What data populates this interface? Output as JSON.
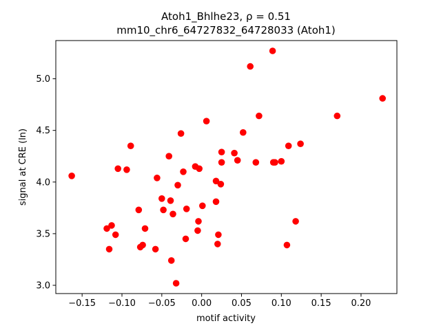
{
  "chart_data": {
    "type": "scatter",
    "title_line1": "Atoh1_Bhlhe23, ρ = 0.51",
    "title_line2": "mm10_chr6_64727832_64728033 (Atoh1)",
    "xlabel": "motif activity",
    "ylabel": "signal at CRE (ln)",
    "xlim": [
      -0.183,
      0.245
    ],
    "ylim": [
      2.92,
      5.37
    ],
    "xticks": [
      -0.15,
      -0.1,
      -0.05,
      0.0,
      0.05,
      0.1,
      0.15,
      0.2
    ],
    "xtick_labels": [
      "−0.15",
      "−0.10",
      "−0.05",
      "0.00",
      "0.05",
      "0.10",
      "0.15",
      "0.20"
    ],
    "yticks": [
      3.0,
      3.5,
      4.0,
      4.5,
      5.0
    ],
    "ytick_labels": [
      "3.0",
      "3.5",
      "4.0",
      "4.5",
      "5.0"
    ],
    "grid": false,
    "marker_color": "#ff0000",
    "points": [
      [
        -0.163,
        4.06
      ],
      [
        -0.119,
        3.55
      ],
      [
        -0.116,
        3.35
      ],
      [
        -0.113,
        3.58
      ],
      [
        -0.108,
        3.49
      ],
      [
        -0.105,
        4.13
      ],
      [
        -0.094,
        4.12
      ],
      [
        -0.089,
        4.35
      ],
      [
        -0.079,
        3.73
      ],
      [
        -0.077,
        3.37
      ],
      [
        -0.074,
        3.39
      ],
      [
        -0.071,
        3.55
      ],
      [
        -0.058,
        3.35
      ],
      [
        -0.056,
        4.04
      ],
      [
        -0.05,
        3.84
      ],
      [
        -0.048,
        3.73
      ],
      [
        -0.041,
        4.25
      ],
      [
        -0.039,
        3.82
      ],
      [
        -0.038,
        3.24
      ],
      [
        -0.036,
        3.69
      ],
      [
        -0.032,
        3.02
      ],
      [
        -0.03,
        3.97
      ],
      [
        -0.026,
        4.47
      ],
      [
        -0.023,
        4.1
      ],
      [
        -0.02,
        3.45
      ],
      [
        -0.019,
        3.74
      ],
      [
        -0.008,
        4.15
      ],
      [
        -0.005,
        3.53
      ],
      [
        -0.004,
        3.62
      ],
      [
        -0.003,
        4.13
      ],
      [
        0.001,
        3.77
      ],
      [
        0.006,
        4.59
      ],
      [
        0.018,
        4.01
      ],
      [
        0.018,
        3.81
      ],
      [
        0.02,
        3.4
      ],
      [
        0.021,
        3.49
      ],
      [
        0.024,
        3.98
      ],
      [
        0.025,
        4.29
      ],
      [
        0.025,
        4.19
      ],
      [
        0.041,
        4.28
      ],
      [
        0.045,
        4.21
      ],
      [
        0.052,
        4.48
      ],
      [
        0.061,
        5.12
      ],
      [
        0.068,
        4.19
      ],
      [
        0.072,
        4.64
      ],
      [
        0.089,
        5.27
      ],
      [
        0.09,
        4.19
      ],
      [
        0.092,
        4.19
      ],
      [
        0.1,
        4.2
      ],
      [
        0.107,
        3.39
      ],
      [
        0.109,
        4.35
      ],
      [
        0.118,
        3.62
      ],
      [
        0.124,
        4.37
      ],
      [
        0.17,
        4.64
      ],
      [
        0.227,
        4.81
      ]
    ]
  }
}
